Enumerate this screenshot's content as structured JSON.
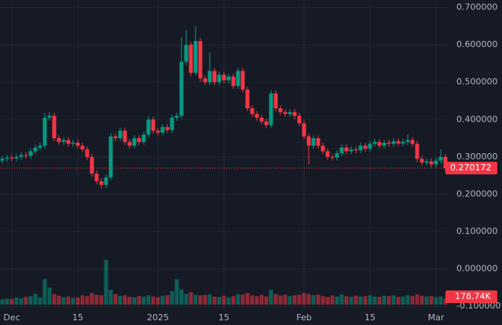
{
  "chart_data": {
    "type": "candlestick",
    "up_color": "#089981",
    "down_color": "#f23645",
    "grid": true,
    "ylim": [
      -0.11,
      0.72
    ],
    "yticks": [
      {
        "value": 0.7,
        "label": "0.700000"
      },
      {
        "value": 0.6,
        "label": "0.600000"
      },
      {
        "value": 0.5,
        "label": "0.500000"
      },
      {
        "value": 0.4,
        "label": "0.400000"
      },
      {
        "value": 0.3,
        "label": "0.300000"
      },
      {
        "value": 0.2,
        "label": "0.200000"
      },
      {
        "value": 0.1,
        "label": "0.100000"
      },
      {
        "value": 0,
        "label": "0.000000"
      },
      {
        "value": -0.1,
        "label": "-0.100000"
      }
    ],
    "categories": [
      null,
      null,
      "Dec",
      null,
      null,
      null,
      null,
      null,
      null,
      null,
      null,
      null,
      null,
      null,
      null,
      null,
      "15",
      null,
      null,
      null,
      null,
      null,
      null,
      null,
      null,
      null,
      null,
      null,
      null,
      null,
      null,
      null,
      null,
      "2025",
      null,
      null,
      null,
      null,
      null,
      null,
      null,
      null,
      null,
      null,
      null,
      null,
      null,
      "15",
      null,
      null,
      null,
      null,
      null,
      null,
      null,
      null,
      null,
      null,
      null,
      null,
      null,
      null,
      null,
      null,
      "Feb",
      null,
      null,
      null,
      null,
      null,
      null,
      null,
      null,
      null,
      null,
      null,
      null,
      null,
      "15",
      null,
      null,
      null,
      null,
      null,
      null,
      null,
      null,
      null,
      null,
      null,
      null,
      null,
      "Mar",
      null,
      null
    ],
    "open": [
      0.29,
      0.295,
      0.298,
      0.296,
      0.3,
      0.305,
      0.303,
      0.315,
      0.325,
      0.33,
      0.405,
      0.41,
      0.35,
      0.34,
      0.345,
      0.335,
      0.338,
      0.33,
      0.32,
      0.3,
      0.255,
      0.235,
      0.225,
      0.245,
      0.355,
      0.35,
      0.37,
      0.34,
      0.33,
      0.35,
      0.34,
      0.36,
      0.4,
      0.37,
      0.365,
      0.38,
      0.372,
      0.405,
      0.41,
      0.555,
      0.6,
      0.525,
      0.61,
      0.51,
      0.5,
      0.53,
      0.5,
      0.52,
      0.505,
      0.515,
      0.49,
      0.53,
      0.48,
      0.43,
      0.415,
      0.405,
      0.395,
      0.385,
      0.47,
      0.43,
      0.42,
      0.415,
      0.42,
      0.41,
      0.39,
      0.355,
      0.33,
      0.35,
      0.33,
      0.315,
      0.3,
      0.298,
      0.31,
      0.325,
      0.315,
      0.32,
      0.318,
      0.33,
      0.322,
      0.335,
      0.34,
      0.33,
      0.338,
      0.335,
      0.342,
      0.336,
      0.34,
      0.345,
      0.335,
      0.295,
      0.285,
      0.288,
      0.28,
      0.29,
      0.3
    ],
    "high": [
      0.303,
      0.306,
      0.306,
      0.308,
      0.313,
      0.313,
      0.323,
      0.333,
      0.338,
      0.418,
      0.42,
      0.418,
      0.358,
      0.353,
      0.353,
      0.346,
      0.346,
      0.338,
      0.328,
      0.308,
      0.263,
      0.243,
      0.253,
      0.363,
      0.363,
      0.378,
      0.378,
      0.348,
      0.358,
      0.358,
      0.368,
      0.41,
      0.408,
      0.378,
      0.388,
      0.388,
      0.413,
      0.418,
      0.62,
      0.64,
      0.608,
      0.65,
      0.618,
      0.518,
      0.58,
      0.538,
      0.528,
      0.528,
      0.523,
      0.523,
      0.538,
      0.538,
      0.488,
      0.438,
      0.423,
      0.413,
      0.403,
      0.478,
      0.478,
      0.438,
      0.428,
      0.428,
      0.428,
      0.418,
      0.398,
      0.363,
      0.358,
      0.358,
      0.338,
      0.323,
      0.308,
      0.318,
      0.333,
      0.333,
      0.328,
      0.328,
      0.338,
      0.338,
      0.343,
      0.348,
      0.348,
      0.346,
      0.346,
      0.35,
      0.35,
      0.348,
      0.36,
      0.353,
      0.343,
      0.303,
      0.296,
      0.296,
      0.298,
      0.32,
      0.308
    ],
    "low": [
      0.282,
      0.287,
      0.288,
      0.288,
      0.292,
      0.295,
      0.295,
      0.307,
      0.317,
      0.322,
      0.397,
      0.342,
      0.332,
      0.332,
      0.327,
      0.327,
      0.322,
      0.312,
      0.292,
      0.247,
      0.227,
      0.215,
      0.217,
      0.237,
      0.342,
      0.342,
      0.332,
      0.322,
      0.322,
      0.332,
      0.332,
      0.352,
      0.362,
      0.357,
      0.357,
      0.364,
      0.364,
      0.397,
      0.402,
      0.547,
      0.517,
      0.517,
      0.502,
      0.492,
      0.492,
      0.492,
      0.492,
      0.497,
      0.497,
      0.482,
      0.482,
      0.472,
      0.422,
      0.407,
      0.397,
      0.387,
      0.377,
      0.377,
      0.422,
      0.412,
      0.407,
      0.407,
      0.402,
      0.382,
      0.347,
      0.28,
      0.322,
      0.322,
      0.307,
      0.292,
      0.29,
      0.29,
      0.302,
      0.307,
      0.307,
      0.31,
      0.31,
      0.314,
      0.314,
      0.327,
      0.322,
      0.322,
      0.327,
      0.327,
      0.328,
      0.328,
      0.332,
      0.327,
      0.287,
      0.277,
      0.277,
      0.272,
      0.272,
      0.282,
      0.262
    ],
    "close": [
      0.295,
      0.298,
      0.296,
      0.3,
      0.305,
      0.303,
      0.315,
      0.325,
      0.33,
      0.405,
      0.41,
      0.35,
      0.34,
      0.345,
      0.335,
      0.338,
      0.33,
      0.32,
      0.3,
      0.255,
      0.235,
      0.225,
      0.245,
      0.355,
      0.35,
      0.37,
      0.34,
      0.33,
      0.35,
      0.34,
      0.36,
      0.4,
      0.37,
      0.365,
      0.38,
      0.372,
      0.405,
      0.41,
      0.555,
      0.6,
      0.525,
      0.61,
      0.51,
      0.5,
      0.53,
      0.5,
      0.52,
      0.505,
      0.515,
      0.49,
      0.53,
      0.48,
      0.43,
      0.415,
      0.405,
      0.395,
      0.385,
      0.47,
      0.43,
      0.42,
      0.415,
      0.42,
      0.41,
      0.39,
      0.355,
      0.33,
      0.35,
      0.33,
      0.315,
      0.3,
      0.298,
      0.31,
      0.325,
      0.315,
      0.32,
      0.318,
      0.33,
      0.322,
      0.335,
      0.34,
      0.33,
      0.338,
      0.335,
      0.342,
      0.336,
      0.34,
      0.345,
      0.335,
      0.295,
      0.285,
      0.288,
      0.28,
      0.29,
      0.3,
      0.270172
    ],
    "volume": [
      150000,
      170000,
      160000,
      200000,
      180000,
      220000,
      240000,
      310000,
      210000,
      720000,
      480000,
      300000,
      250000,
      210000,
      230000,
      190000,
      200000,
      260000,
      240000,
      330000,
      280000,
      260000,
      1270000,
      420000,
      300000,
      250000,
      260000,
      220000,
      210000,
      240000,
      230000,
      260000,
      230000,
      210000,
      250000,
      270000,
      380000,
      720000,
      430000,
      300000,
      350000,
      280000,
      260000,
      270000,
      290000,
      230000,
      220000,
      250000,
      200000,
      240000,
      300000,
      280000,
      330000,
      260000,
      240000,
      270000,
      230000,
      420000,
      300000,
      260000,
      280000,
      240000,
      260000,
      280000,
      330000,
      300000,
      270000,
      280000,
      240000,
      220000,
      260000,
      230000,
      290000,
      240000,
      220000,
      250000,
      230000,
      240000,
      260000,
      230000,
      220000,
      250000,
      240000,
      260000,
      220000,
      230000,
      270000,
      240000,
      290000,
      250000,
      230000,
      240000,
      210000,
      230000,
      178740
    ],
    "last_volume_label": "178.74K"
  }
}
